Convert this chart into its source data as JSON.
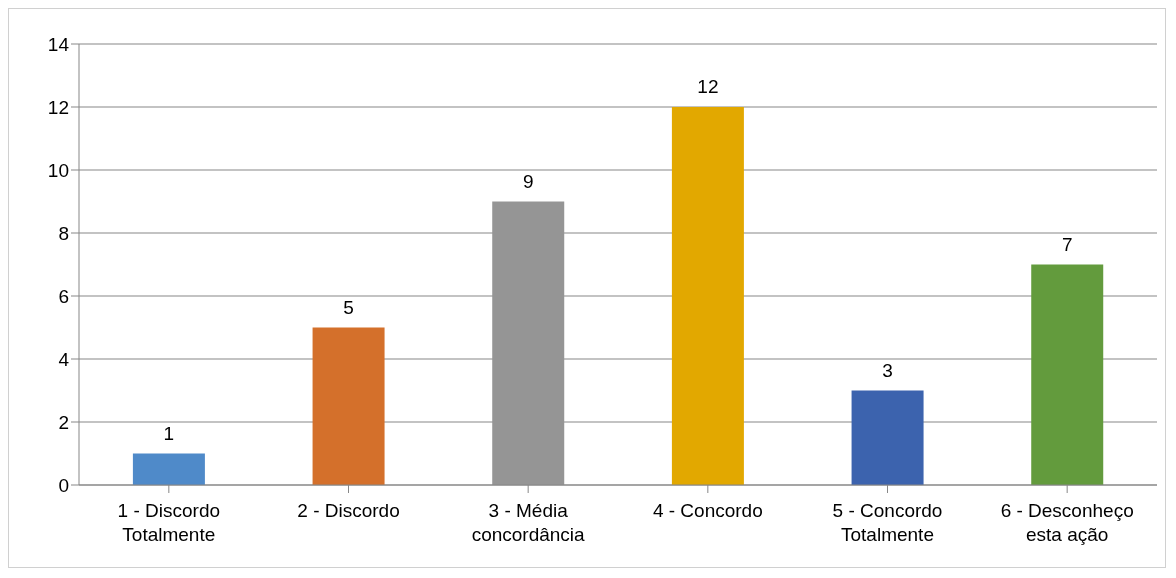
{
  "chart_data": {
    "type": "bar",
    "categories": [
      "1 - Discordo Totalmente",
      "2 - Discordo",
      "3 - Média concordância",
      "4 - Concordo",
      "5 - Concordo Totalmente",
      "6 - Desconheço esta ação"
    ],
    "values": [
      1,
      5,
      9,
      12,
      3,
      7
    ],
    "colors": [
      "#4f8ac9",
      "#d4702b",
      "#959595",
      "#e2a800",
      "#3c63ae",
      "#639b3d"
    ],
    "ylim": [
      0,
      14
    ],
    "yticks": [
      0,
      2,
      4,
      6,
      8,
      10,
      12,
      14
    ],
    "grid": "y",
    "data_labels": true
  }
}
